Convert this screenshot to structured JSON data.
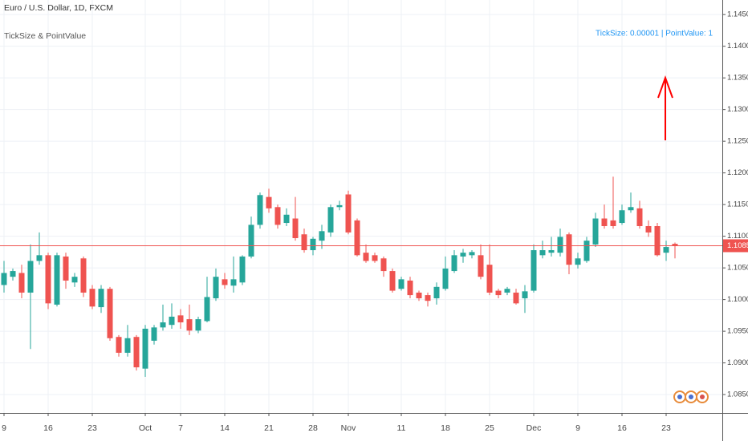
{
  "chart_data": {
    "type": "candlestick",
    "title": "Euro / U.S. Dollar, 1D, FXCM",
    "subtitle": "TickSize & PointValue",
    "annotation": "TickSize: 0.00001 | PointValue: 1",
    "annotation_color": "#2196f3",
    "up_color": "#26a69a",
    "down_color": "#ef5350",
    "grid": true,
    "categories": [
      "9",
      null,
      null,
      null,
      null,
      "16",
      null,
      null,
      null,
      null,
      "23",
      null,
      null,
      null,
      null,
      null,
      "Oct",
      null,
      null,
      null,
      "7",
      null,
      null,
      null,
      null,
      "14",
      null,
      null,
      null,
      null,
      "21",
      null,
      null,
      null,
      null,
      "28",
      null,
      null,
      null,
      "Nov",
      null,
      null,
      null,
      null,
      null,
      "11",
      null,
      null,
      null,
      null,
      "18",
      null,
      null,
      null,
      null,
      "25",
      null,
      null,
      null,
      null,
      "Dec",
      null,
      null,
      null,
      null,
      "9",
      null,
      null,
      null,
      null,
      "16",
      null,
      null,
      null,
      null,
      "23",
      null
    ],
    "open": [
      1.1023,
      1.1036,
      1.1042,
      1.1011,
      1.1061,
      1.107,
      1.0992,
      1.1068,
      1.1027,
      1.1065,
      1.1017,
      1.0988,
      1.1017,
      1.0941,
      1.0916,
      1.0941,
      1.0891,
      1.0935,
      1.0956,
      1.096,
      1.0975,
      1.0969,
      1.0951,
      1.0966,
      1.1002,
      1.1032,
      1.1022,
      1.1027,
      1.1068,
      1.1118,
      1.1162,
      1.1146,
      1.1121,
      1.1128,
      1.1103,
      1.1078,
      1.1093,
      1.1106,
      1.1146,
      1.1166,
      1.1125,
      1.1074,
      1.107,
      1.1065,
      1.1045,
      1.1017,
      1.103,
      1.1011,
      1.1007,
      1.1002,
      1.1017,
      1.1045,
      1.1068,
      1.107,
      1.107,
      1.1055,
      1.1014,
      1.1011,
      1.1011,
      1.1002,
      1.1014,
      1.107,
      1.1074,
      1.1074,
      1.1103,
      1.1055,
      1.1061,
      1.1087,
      1.1128,
      1.1125,
      1.1121,
      1.1141,
      1.1144,
      1.1116,
      1.1116,
      1.1074,
      1.1088
    ],
    "high": [
      1.1061,
      1.1049,
      1.1055,
      1.1087,
      1.1106,
      1.1074,
      1.1074,
      1.1074,
      1.1042,
      1.1068,
      1.1023,
      1.1023,
      1.102,
      1.0944,
      1.096,
      1.0944,
      1.096,
      1.096,
      1.0992,
      1.0994,
      1.0985,
      1.0992,
      1.0973,
      1.1036,
      1.1049,
      1.1042,
      1.1068,
      1.107,
      1.1131,
      1.1169,
      1.1175,
      1.115,
      1.1144,
      1.1162,
      1.1112,
      1.1099,
      1.1118,
      1.115,
      1.1156,
      1.1172,
      1.1128,
      1.1087,
      1.1074,
      1.1068,
      1.1049,
      1.1036,
      1.1036,
      1.1014,
      1.1011,
      1.1027,
      1.1068,
      1.1078,
      1.108,
      1.1078,
      1.1087,
      1.1087,
      1.1017,
      1.102,
      1.1017,
      1.1023,
      1.1087,
      1.1093,
      1.1099,
      1.1112,
      1.1106,
      1.1074,
      1.1099,
      1.1137,
      1.115,
      1.1194,
      1.115,
      1.1169,
      1.1156,
      1.1125,
      1.1121,
      1.1093,
      1.109
    ],
    "low": [
      1.1011,
      1.103,
      1.1002,
      1.0922,
      1.1055,
      1.0985,
      1.0989,
      1.1017,
      1.102,
      1.1004,
      1.0985,
      1.0979,
      1.0935,
      1.091,
      1.091,
      1.0888,
      1.0878,
      1.0929,
      1.0951,
      1.0954,
      1.0954,
      1.0944,
      1.0947,
      1.0964,
      1.0998,
      1.1017,
      1.1011,
      1.1023,
      1.1065,
      1.1112,
      1.1137,
      1.1112,
      1.1116,
      1.1093,
      1.1074,
      1.107,
      1.108,
      1.1099,
      1.1141,
      1.1103,
      1.1068,
      1.1058,
      1.1058,
      1.1036,
      1.1011,
      1.1014,
      1.1002,
      1.0998,
      1.0989,
      1.0992,
      1.1014,
      1.1042,
      1.1058,
      1.1065,
      1.1032,
      1.1007,
      1.1002,
      1.1007,
      1.0992,
      1.0979,
      1.1011,
      1.1065,
      1.1068,
      1.1068,
      1.104,
      1.1049,
      1.1058,
      1.1083,
      1.1112,
      1.1112,
      1.1118,
      1.1137,
      1.1112,
      1.1099,
      1.1068,
      1.1061,
      1.1065
    ],
    "close": [
      1.1042,
      1.1045,
      1.1011,
      1.1061,
      1.107,
      1.0994,
      1.107,
      1.103,
      1.1036,
      1.1011,
      1.0989,
      1.1017,
      1.0939,
      1.0916,
      1.0939,
      1.0893,
      1.0954,
      1.0956,
      1.0964,
      1.0973,
      1.0964,
      1.0951,
      1.0969,
      1.1004,
      1.1036,
      1.1023,
      1.1032,
      1.1068,
      1.1118,
      1.1165,
      1.1144,
      1.1118,
      1.1134,
      1.1097,
      1.1078,
      1.1096,
      1.1108,
      1.1146,
      1.1149,
      1.1106,
      1.107,
      1.1061,
      1.1061,
      1.1045,
      1.1014,
      1.1032,
      1.1007,
      1.1002,
      1.0998,
      1.102,
      1.1049,
      1.107,
      1.1074,
      1.1075,
      1.1036,
      1.1011,
      1.1007,
      1.1017,
      1.0994,
      1.1013,
      1.1078,
      1.1078,
      1.1078,
      1.1099,
      1.1055,
      1.1065,
      1.1093,
      1.1128,
      1.1116,
      1.1116,
      1.1141,
      1.1146,
      1.1116,
      1.1106,
      1.107,
      1.1083,
      1.1085
    ],
    "last_price": {
      "value": 1.1085,
      "label": "1.10850"
    },
    "ylim": [
      1.0821,
      1.1473
    ],
    "yticks": [
      {
        "value": 1.085,
        "label": "1.08500"
      },
      {
        "value": 1.09,
        "label": "1.09000"
      },
      {
        "value": 1.095,
        "label": "1.09500"
      },
      {
        "value": 1.1,
        "label": "1.10000"
      },
      {
        "value": 1.105,
        "label": "1.10500"
      },
      {
        "value": 1.11,
        "label": "1.11000"
      },
      {
        "value": 1.115,
        "label": "1.11500"
      },
      {
        "value": 1.12,
        "label": "1.12000"
      },
      {
        "value": 1.125,
        "label": "1.12500"
      },
      {
        "value": 1.13,
        "label": "1.13000"
      },
      {
        "value": 1.135,
        "label": "1.13500"
      },
      {
        "value": 1.14,
        "label": "1.14000"
      },
      {
        "value": 1.145,
        "label": "1.14500"
      }
    ]
  }
}
